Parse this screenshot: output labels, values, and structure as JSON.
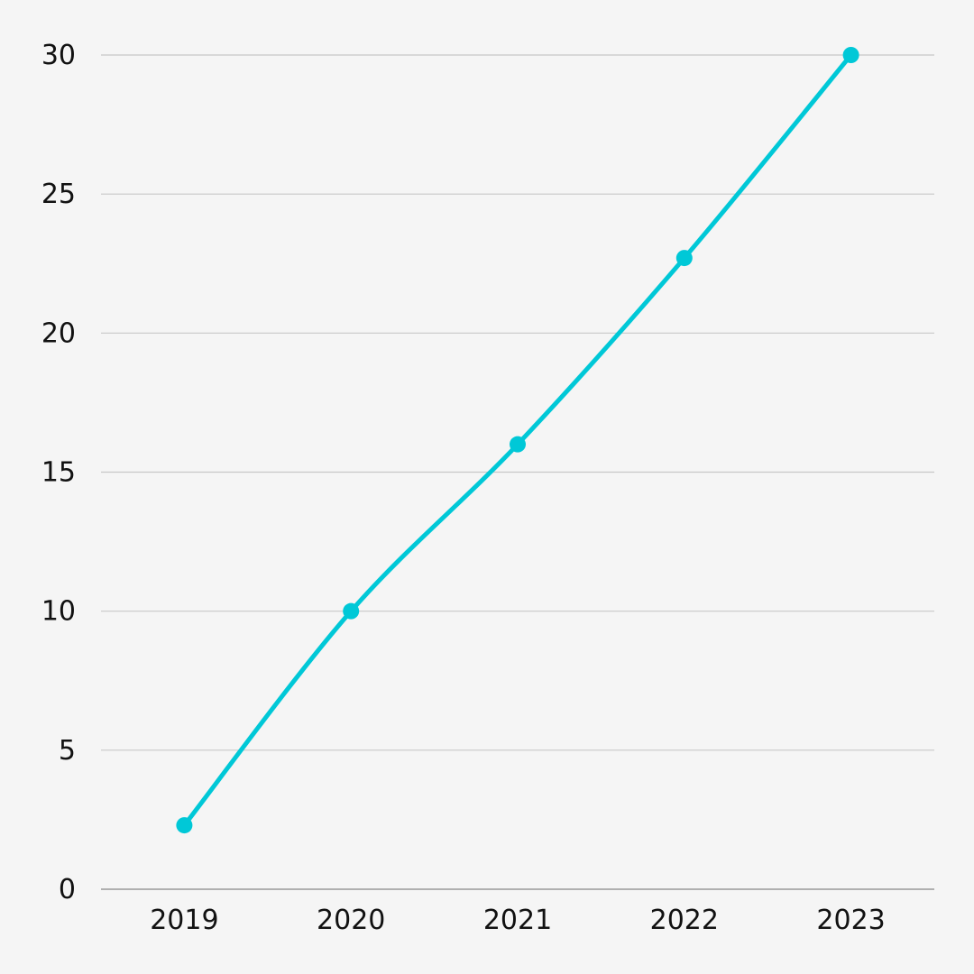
{
  "chart_data": {
    "type": "line",
    "title": "",
    "xlabel": "",
    "ylabel": "",
    "categories": [
      "2019",
      "2020",
      "2021",
      "2022",
      "2023"
    ],
    "series": [
      {
        "values": [
          2.3,
          10,
          16,
          22.7,
          30
        ]
      }
    ],
    "ylim": [
      0,
      30
    ],
    "yticks": [
      "0",
      "5",
      "10",
      "15",
      "20",
      "25",
      "30"
    ],
    "grid": true,
    "curve": "smooth",
    "markers": true,
    "colors": {
      "background": "#f5f5f5",
      "line": "#00c8d7",
      "grid": "#c8c8c8",
      "axis": "#9a9a9a",
      "text": "#111111"
    }
  }
}
